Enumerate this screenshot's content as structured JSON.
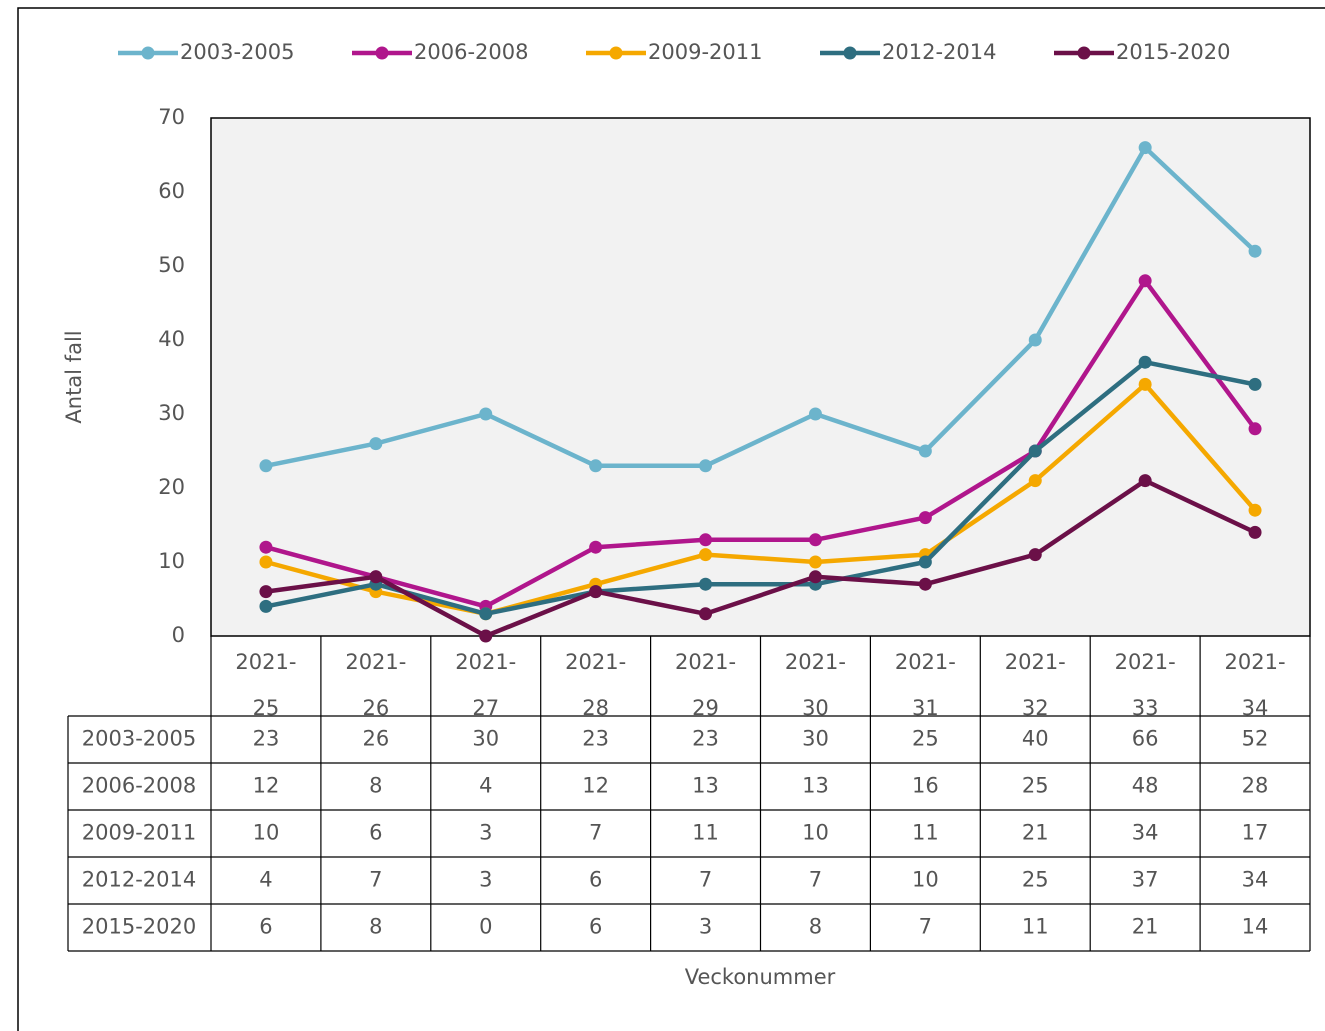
{
  "chart_data": {
    "type": "line",
    "y_label": "Antal fall",
    "x_label": "Veckonummer",
    "categories": [
      "2021-25",
      "2021-26",
      "2021-27",
      "2021-28",
      "2021-29",
      "2021-30",
      "2021-31",
      "2021-32",
      "2021-33",
      "2021-34"
    ],
    "series": [
      {
        "name": "2003-2005",
        "color": "#6cb4cc",
        "values": [
          23,
          26,
          30,
          23,
          23,
          30,
          25,
          40,
          66,
          52
        ]
      },
      {
        "name": "2006-2008",
        "color": "#b0168c",
        "values": [
          12,
          8,
          4,
          12,
          13,
          13,
          16,
          25,
          48,
          28
        ]
      },
      {
        "name": "2009-2011",
        "color": "#f5a800",
        "values": [
          10,
          6,
          3,
          7,
          11,
          10,
          11,
          21,
          34,
          17
        ]
      },
      {
        "name": "2012-2014",
        "color": "#2e6e80",
        "values": [
          4,
          7,
          3,
          6,
          7,
          7,
          10,
          25,
          37,
          34
        ]
      },
      {
        "name": "2015-2020",
        "color": "#6b1048",
        "values": [
          6,
          8,
          0,
          6,
          3,
          8,
          7,
          11,
          21,
          14
        ]
      }
    ],
    "ylim": [
      0,
      70
    ],
    "yticks": [
      0,
      10,
      20,
      30,
      40,
      50,
      60,
      70
    ],
    "grid": false,
    "legend": "top"
  }
}
